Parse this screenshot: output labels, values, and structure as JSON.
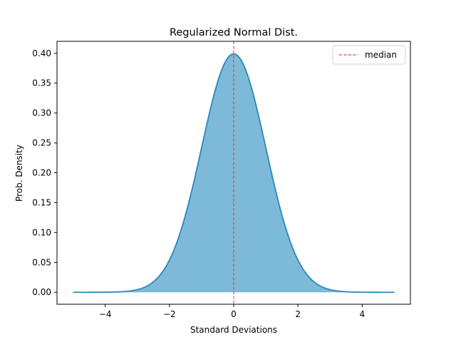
{
  "chart_data": {
    "type": "area",
    "title": "Regularized Normal Dist.",
    "xlabel": "Standard Deviations",
    "ylabel": "Prob. Density",
    "xlim": [
      -5.5,
      5.5
    ],
    "ylim": [
      -0.02,
      0.42
    ],
    "xticks": [
      -4,
      -2,
      0,
      2,
      4
    ],
    "xtick_labels": [
      "−4",
      "−2",
      "0",
      "2",
      "4"
    ],
    "yticks": [
      0.0,
      0.05,
      0.1,
      0.15,
      0.2,
      0.25,
      0.3,
      0.35,
      0.4
    ],
    "ytick_labels": [
      "0.00",
      "0.05",
      "0.10",
      "0.15",
      "0.20",
      "0.25",
      "0.30",
      "0.35",
      "0.40"
    ],
    "grid": false,
    "legend_position": "top-right",
    "series": {
      "distribution": "standard normal density",
      "mean": 0,
      "std": 1,
      "x_range": [
        -5,
        5
      ],
      "line_color": "#2b88bd",
      "fill_color": "#7db9d9"
    },
    "reference_line": {
      "name": "median",
      "x": 0,
      "color": "#e8413a",
      "style": "dashed"
    }
  }
}
